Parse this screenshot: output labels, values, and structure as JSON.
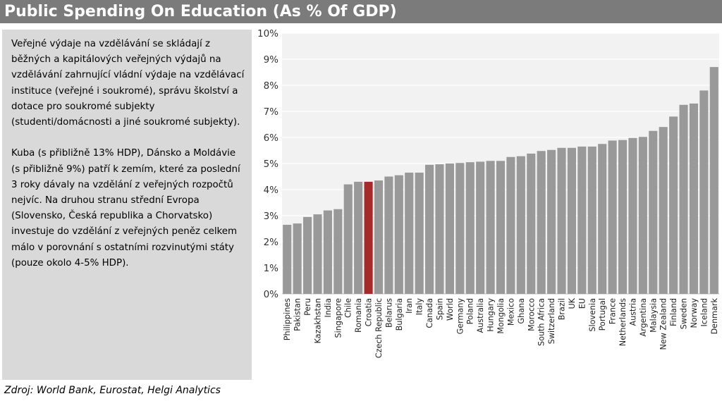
{
  "title": "Public Spending On Education (As % Of GDP)",
  "description": {
    "paragraph1": "Veřejné výdaje na vzdělávání se skládají z běžných a kapitálových veřejných výdajů na vzdělávání zahrnující vládní výdaje na vzdělávací instituce (veřejné i soukromé), správu školství a dotace pro soukromé subjekty (studenti/domácnosti a jiné soukromé subjekty).",
    "paragraph2": "Kuba (s přibližně 13% HDP), Dánsko a Moldávie (s přibližně 9%) patří k zemím, které za poslední 3 roky dávaly na vzdělání z veřejných rozpočtů nejvíc. Na druhou stranu střední Evropa (Slovensko, Česká republika a Chorvatsko) investuje do vzdělání z veřejných peněz celkem málo v porovnání s ostatními rozvinutými státy (pouze okolo 4-5% HDP)."
  },
  "source": "Zdroj: World Bank, Eurostat, Helgi Analytics",
  "colors": {
    "bar": "#999999",
    "highlight": "#a52a2a",
    "title_bg": "#7b7b7b",
    "panel_bg": "#d9d9d9",
    "plot_bg": "#f2f2f2"
  },
  "chart_data": {
    "type": "bar",
    "title": "Public Spending On Education (As % Of GDP)",
    "xlabel": "",
    "ylabel": "",
    "ylim": [
      0,
      10
    ],
    "y_ticks": [
      0,
      1,
      2,
      3,
      4,
      5,
      6,
      7,
      8,
      9,
      10
    ],
    "y_tick_suffix": "%",
    "grid": true,
    "legend": "none",
    "highlight": "Croatia",
    "categories": [
      "Philippines",
      "Pakistan",
      "Peru",
      "Kazakhstan",
      "India",
      "Singapore",
      "Chile",
      "Romania",
      "Croatia",
      "Czech Republic",
      "Belarus",
      "Bulgaria",
      "Iran",
      "Italy",
      "Canada",
      "Spain",
      "World",
      "Germany",
      "Poland",
      "Australia",
      "Hungary",
      "Mongolia",
      "Mexico",
      "Ghana",
      "Morocco",
      "South Africa",
      "Switzerland",
      "Brazil",
      "UK",
      "EU",
      "Slovenia",
      "Portugal",
      "France",
      "Netherlands",
      "Austria",
      "Argentina",
      "Malaysia",
      "New Zealand",
      "Finland",
      "Sweden",
      "Norway",
      "Iceland",
      "Denmark"
    ],
    "values": [
      2.65,
      2.7,
      2.95,
      3.05,
      3.2,
      3.25,
      4.2,
      4.3,
      4.3,
      4.35,
      4.5,
      4.55,
      4.65,
      4.65,
      4.95,
      4.97,
      5.0,
      5.02,
      5.05,
      5.07,
      5.1,
      5.1,
      5.25,
      5.28,
      5.38,
      5.48,
      5.52,
      5.6,
      5.6,
      5.65,
      5.65,
      5.75,
      5.88,
      5.9,
      5.98,
      6.02,
      6.25,
      6.4,
      6.8,
      7.25,
      7.3,
      7.8,
      8.7
    ]
  }
}
